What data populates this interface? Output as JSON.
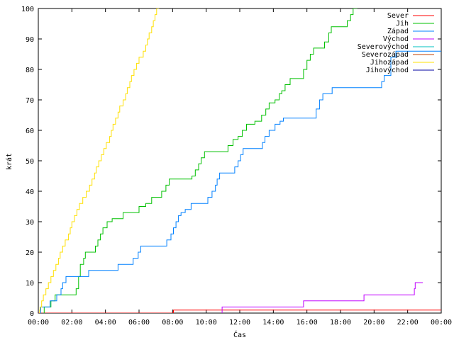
{
  "chart_data": {
    "type": "line",
    "xlabel": "Čas",
    "ylabel": "krát",
    "xlim": [
      0,
      24
    ],
    "ylim": [
      0,
      100
    ],
    "x_ticks": [
      {
        "value": 0,
        "label": "00:00"
      },
      {
        "value": 2,
        "label": "02:00"
      },
      {
        "value": 4,
        "label": "04:00"
      },
      {
        "value": 6,
        "label": "06:00"
      },
      {
        "value": 8,
        "label": "08:00"
      },
      {
        "value": 10,
        "label": "10:00"
      },
      {
        "value": 12,
        "label": "12:00"
      },
      {
        "value": 14,
        "label": "14:00"
      },
      {
        "value": 16,
        "label": "16:00"
      },
      {
        "value": 18,
        "label": "18:00"
      },
      {
        "value": 20,
        "label": "20:00"
      },
      {
        "value": 22,
        "label": "22:00"
      },
      {
        "value": 24,
        "label": "00:00"
      }
    ],
    "y_ticks": [
      0,
      10,
      20,
      30,
      40,
      50,
      60,
      70,
      80,
      90,
      100
    ],
    "grid": false,
    "legend_position": "top-right",
    "series": [
      {
        "name": "Sever",
        "color": "#ff0000",
        "step": true,
        "points": [
          [
            0,
            0
          ],
          [
            8.05,
            0
          ],
          [
            8.05,
            1
          ],
          [
            24,
            1
          ]
        ]
      },
      {
        "name": "Jih",
        "color": "#00c000",
        "step": true,
        "points": [
          [
            0.3,
            0
          ],
          [
            0.35,
            2
          ],
          [
            0.75,
            4
          ],
          [
            1,
            6
          ],
          [
            1.5,
            6
          ],
          [
            2.25,
            8
          ],
          [
            2.4,
            12
          ],
          [
            2.5,
            16
          ],
          [
            2.7,
            18
          ],
          [
            2.8,
            20
          ],
          [
            3.2,
            20
          ],
          [
            3.4,
            22
          ],
          [
            3.55,
            24
          ],
          [
            3.7,
            26
          ],
          [
            3.85,
            28
          ],
          [
            4.1,
            30
          ],
          [
            4.4,
            31
          ],
          [
            5.05,
            33
          ],
          [
            5.75,
            33
          ],
          [
            6,
            35
          ],
          [
            6.4,
            36
          ],
          [
            6.75,
            38
          ],
          [
            7.2,
            38
          ],
          [
            7.35,
            40
          ],
          [
            7.6,
            42
          ],
          [
            7.8,
            44
          ],
          [
            9,
            44
          ],
          [
            9.15,
            45
          ],
          [
            9.35,
            47
          ],
          [
            9.55,
            49
          ],
          [
            9.7,
            51
          ],
          [
            9.9,
            53
          ],
          [
            11.15,
            53
          ],
          [
            11.3,
            55
          ],
          [
            11.6,
            57
          ],
          [
            11.9,
            58
          ],
          [
            12.15,
            60
          ],
          [
            12.4,
            62
          ],
          [
            12.9,
            63
          ],
          [
            13.3,
            65
          ],
          [
            13.55,
            67
          ],
          [
            13.75,
            69
          ],
          [
            14.1,
            70
          ],
          [
            14.35,
            72
          ],
          [
            14.5,
            73
          ],
          [
            14.7,
            75
          ],
          [
            15,
            77
          ],
          [
            15.6,
            77
          ],
          [
            15.8,
            80
          ],
          [
            16,
            83
          ],
          [
            16.2,
            85
          ],
          [
            16.4,
            87
          ],
          [
            16.9,
            87
          ],
          [
            17.05,
            89
          ],
          [
            17.3,
            92
          ],
          [
            17.45,
            94
          ],
          [
            18.2,
            94
          ],
          [
            18.4,
            96
          ],
          [
            18.6,
            98
          ],
          [
            18.75,
            100
          ],
          [
            19,
            100
          ]
        ]
      },
      {
        "name": "Západ",
        "color": "#0080ff",
        "step": true,
        "points": [
          [
            0.05,
            0
          ],
          [
            0.15,
            2
          ],
          [
            0.7,
            4
          ],
          [
            1.1,
            6
          ],
          [
            1.35,
            8
          ],
          [
            1.45,
            10
          ],
          [
            1.65,
            12
          ],
          [
            2.8,
            12
          ],
          [
            3,
            14
          ],
          [
            4.55,
            14
          ],
          [
            4.75,
            16
          ],
          [
            5.45,
            16
          ],
          [
            5.65,
            18
          ],
          [
            5.95,
            20
          ],
          [
            6.1,
            22
          ],
          [
            7.45,
            22
          ],
          [
            7.65,
            24
          ],
          [
            7.9,
            26
          ],
          [
            8.05,
            28
          ],
          [
            8.2,
            30
          ],
          [
            8.35,
            32
          ],
          [
            8.5,
            33
          ],
          [
            8.75,
            34
          ],
          [
            9.1,
            36
          ],
          [
            9.85,
            36
          ],
          [
            10.1,
            38
          ],
          [
            10.35,
            40
          ],
          [
            10.55,
            42
          ],
          [
            10.65,
            44
          ],
          [
            10.8,
            46
          ],
          [
            11.55,
            46
          ],
          [
            11.7,
            48
          ],
          [
            11.9,
            50
          ],
          [
            12.05,
            52
          ],
          [
            12.2,
            54
          ],
          [
            13.2,
            54
          ],
          [
            13.35,
            56
          ],
          [
            13.5,
            58
          ],
          [
            13.75,
            60
          ],
          [
            14.1,
            62
          ],
          [
            14.4,
            63
          ],
          [
            14.6,
            64
          ],
          [
            16.4,
            64
          ],
          [
            16.55,
            67
          ],
          [
            16.75,
            70
          ],
          [
            16.95,
            72
          ],
          [
            17.3,
            72
          ],
          [
            17.5,
            74
          ],
          [
            18.6,
            74
          ],
          [
            20.3,
            74
          ],
          [
            20.45,
            76
          ],
          [
            20.6,
            78
          ],
          [
            21,
            84
          ],
          [
            21.3,
            86
          ],
          [
            22.5,
            86
          ],
          [
            24,
            86
          ]
        ]
      },
      {
        "name": "Východ",
        "color": "#c000ff",
        "step": true,
        "points": [
          [
            10.95,
            0
          ],
          [
            10.95,
            2
          ],
          [
            15.6,
            2
          ],
          [
            15.8,
            4
          ],
          [
            19.2,
            4
          ],
          [
            19.4,
            6
          ],
          [
            22.25,
            6
          ],
          [
            22.4,
            8
          ],
          [
            22.45,
            10
          ],
          [
            22.9,
            10
          ]
        ]
      },
      {
        "name": "Severovýchod",
        "color": "#00c0c0",
        "step": true,
        "points": []
      },
      {
        "name": "Severozápad",
        "color": "#c04000",
        "step": true,
        "points": []
      },
      {
        "name": "Jihozápad",
        "color": "#ffe000",
        "step": true,
        "points": [
          [
            0.05,
            0
          ],
          [
            0.08,
            1
          ],
          [
            0.1,
            2
          ],
          [
            0.2,
            4
          ],
          [
            0.3,
            6
          ],
          [
            0.45,
            8
          ],
          [
            0.6,
            10
          ],
          [
            0.75,
            12
          ],
          [
            0.9,
            14
          ],
          [
            1.05,
            16
          ],
          [
            1.2,
            18
          ],
          [
            1.3,
            20
          ],
          [
            1.45,
            22
          ],
          [
            1.6,
            24
          ],
          [
            1.8,
            26
          ],
          [
            1.9,
            28
          ],
          [
            2,
            30
          ],
          [
            2.15,
            32
          ],
          [
            2.3,
            34
          ],
          [
            2.45,
            36
          ],
          [
            2.65,
            38
          ],
          [
            2.85,
            40
          ],
          [
            3.05,
            42
          ],
          [
            3.2,
            44
          ],
          [
            3.35,
            46
          ],
          [
            3.45,
            48
          ],
          [
            3.6,
            50
          ],
          [
            3.75,
            52
          ],
          [
            3.9,
            54
          ],
          [
            4.05,
            56
          ],
          [
            4.25,
            58
          ],
          [
            4.35,
            60
          ],
          [
            4.45,
            62
          ],
          [
            4.6,
            64
          ],
          [
            4.75,
            66
          ],
          [
            4.85,
            68
          ],
          [
            5.05,
            70
          ],
          [
            5.2,
            72
          ],
          [
            5.3,
            74
          ],
          [
            5.45,
            76
          ],
          [
            5.55,
            78
          ],
          [
            5.7,
            80
          ],
          [
            5.85,
            82
          ],
          [
            6,
            84
          ],
          [
            6.25,
            86
          ],
          [
            6.4,
            88
          ],
          [
            6.5,
            90
          ],
          [
            6.6,
            92
          ],
          [
            6.75,
            94
          ],
          [
            6.85,
            96
          ],
          [
            6.95,
            98
          ],
          [
            7.05,
            100
          ],
          [
            7.2,
            100
          ]
        ]
      },
      {
        "name": "Jihovýchod",
        "color": "#0000a0",
        "step": true,
        "points": []
      }
    ]
  }
}
